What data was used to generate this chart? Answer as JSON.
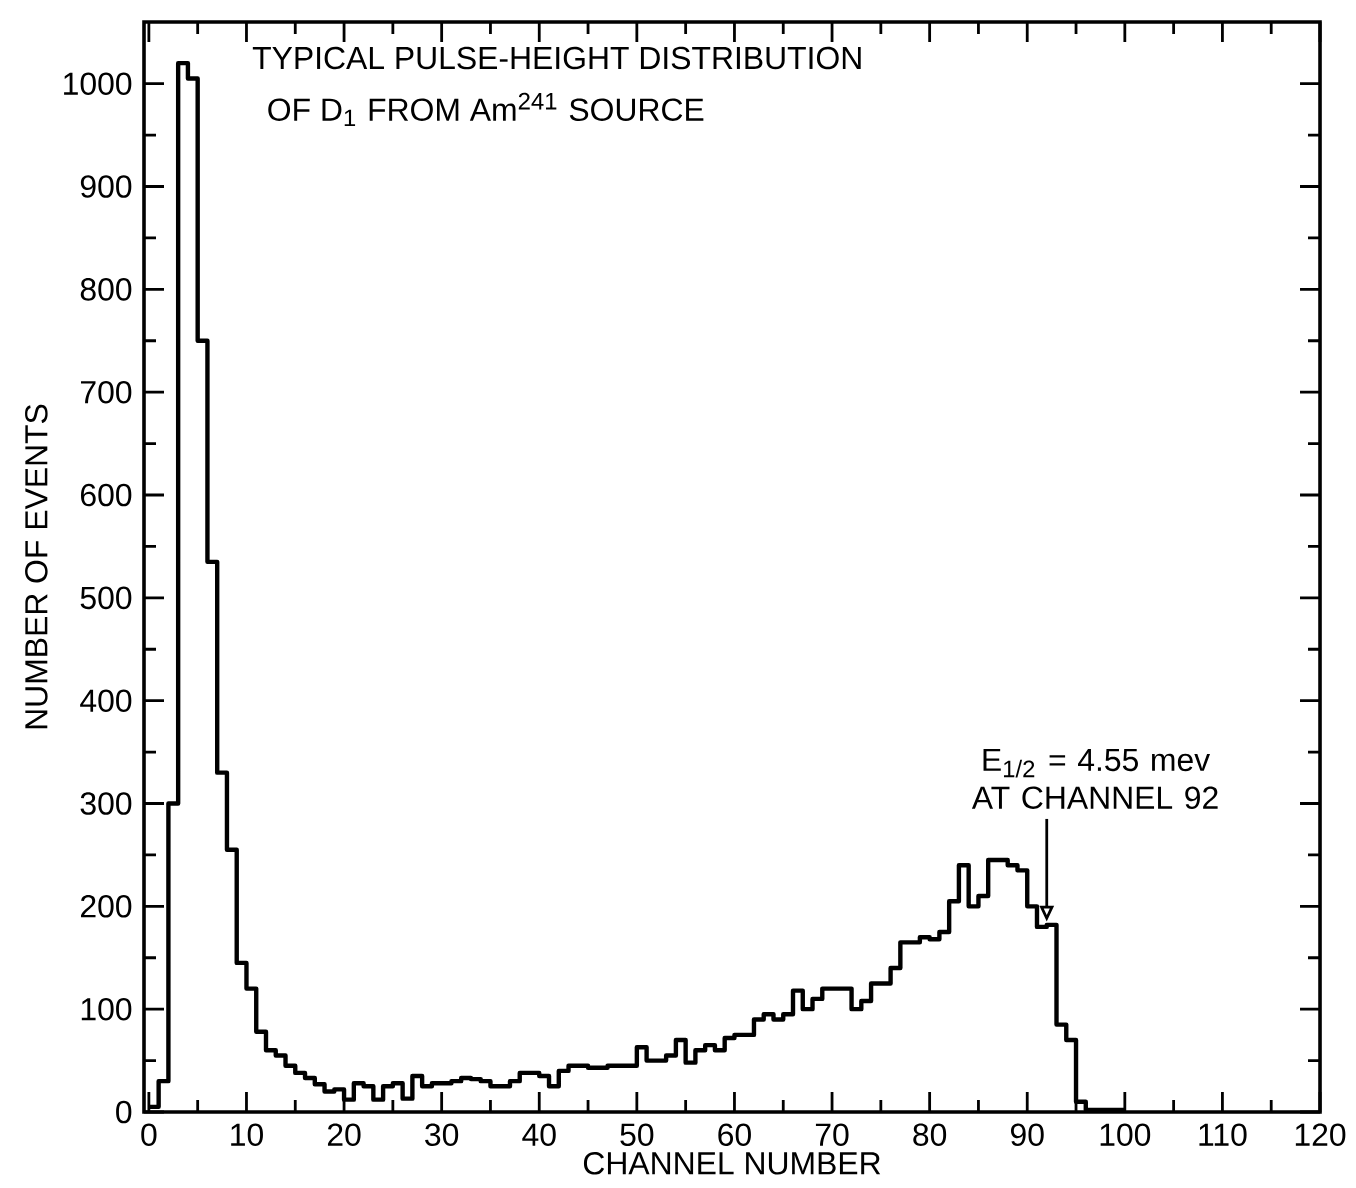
{
  "chart_data": {
    "type": "histogram",
    "title": "TYPICAL PULSE-HEIGHT DISTRIBUTION",
    "subtitle": "OF D$_{1}$ FROM Am$^{241}$ SOURCE",
    "xlabel": "CHANNEL NUMBER",
    "ylabel": "NUMBER OF EVENTS",
    "color": "#000000",
    "bins": [
      0,
      1,
      2,
      3,
      4,
      5,
      6,
      7,
      8,
      9,
      10,
      11,
      12,
      13,
      14,
      15,
      16,
      17,
      18,
      19,
      20,
      21,
      22,
      23,
      24,
      25,
      26,
      27,
      28,
      29,
      30,
      31,
      32,
      33,
      34,
      35,
      36,
      37,
      38,
      39,
      40,
      41,
      42,
      43,
      44,
      45,
      46,
      47,
      48,
      49,
      50,
      51,
      52,
      53,
      54,
      55,
      56,
      57,
      58,
      59,
      60,
      61,
      62,
      63,
      64,
      65,
      66,
      67,
      68,
      69,
      70,
      71,
      72,
      73,
      74,
      75,
      76,
      77,
      78,
      79,
      80,
      81,
      82,
      83,
      84,
      85,
      86,
      87,
      88,
      89,
      90,
      91,
      92,
      93,
      94,
      95,
      96,
      97,
      98,
      99,
      100
    ],
    "values": [
      5,
      30,
      300,
      1020,
      1005,
      750,
      535,
      330,
      255,
      145,
      120,
      78,
      60,
      55,
      45,
      38,
      33,
      27,
      20,
      22,
      12,
      28,
      25,
      12,
      25,
      28,
      13,
      35,
      25,
      28,
      28,
      30,
      33,
      32,
      30,
      25,
      25,
      30,
      38,
      38,
      35,
      25,
      40,
      45,
      45,
      43,
      43,
      45,
      45,
      45,
      63,
      50,
      50,
      55,
      70,
      48,
      60,
      65,
      60,
      72,
      75,
      75,
      90,
      95,
      90,
      95,
      118,
      100,
      110,
      120,
      120,
      120,
      100,
      108,
      125,
      125,
      140,
      165,
      165,
      170,
      168,
      175,
      205,
      240,
      200,
      210,
      245,
      245,
      240,
      235,
      200,
      180,
      182,
      85,
      70,
      10,
      2,
      2,
      2,
      2
    ],
    "xlim": [
      -0.5,
      120
    ],
    "ylim": [
      0,
      1060
    ],
    "xticks": [
      0,
      10,
      20,
      30,
      40,
      50,
      60,
      70,
      80,
      90,
      100,
      110,
      120
    ],
    "yticks": [
      0,
      100,
      200,
      300,
      400,
      500,
      600,
      700,
      800,
      900,
      1000
    ],
    "annotations": [
      {
        "text": "E$_{1/2}$ = 4.55 mev AT CHANNEL 92",
        "x": 92,
        "y": 185
      }
    ]
  }
}
